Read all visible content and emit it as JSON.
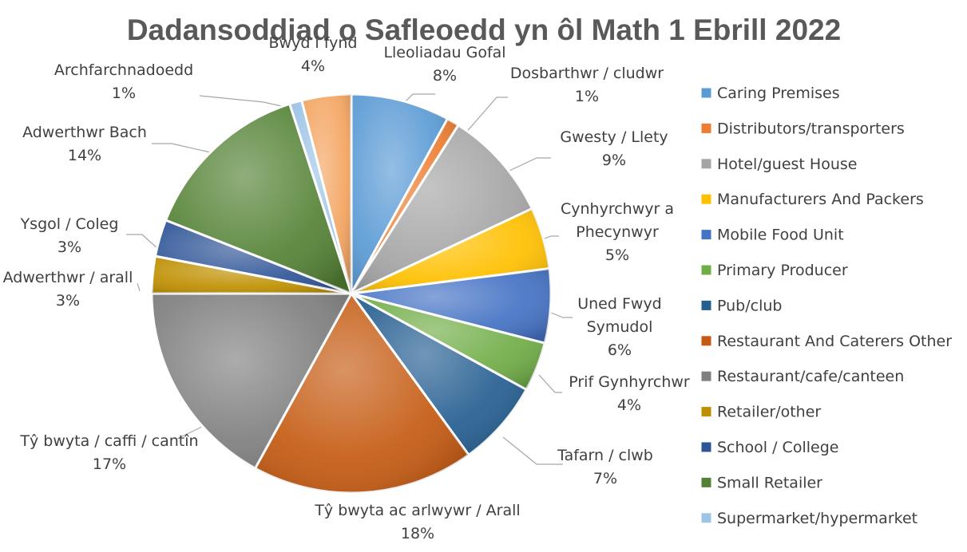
{
  "chart_data": {
    "type": "pie",
    "title": "Dadansoddiad o Safleoedd yn ôl Math 1 Ebrill 2022",
    "legend_position": "right",
    "slices": [
      {
        "label": "Lleoliadau Gofal",
        "label_lines": [
          "Lleoliadau Gofal"
        ],
        "percent": "8%",
        "value": 8,
        "legend": "Caring Premises",
        "color": "#5b9bd5"
      },
      {
        "label": "Dosbarthwr / cludwr",
        "label_lines": [
          "Dosbarthwr / cludwr"
        ],
        "percent": "1%",
        "value": 1,
        "legend": "Distributors/transporters",
        "color": "#ed7d31"
      },
      {
        "label": "Gwesty / Llety",
        "label_lines": [
          "Gwesty / Llety"
        ],
        "percent": "9%",
        "value": 9,
        "legend": "Hotel/guest House",
        "color": "#a5a5a5"
      },
      {
        "label": "Cynhyrchwyr a Phecynwyr",
        "label_lines": [
          "Cynhyrchwyr a",
          "Phecynwyr"
        ],
        "percent": "5%",
        "value": 5,
        "legend": "Manufacturers And Packers",
        "color": "#ffc000"
      },
      {
        "label": "Uned Fwyd Symudol",
        "label_lines": [
          "Uned Fwyd",
          "Symudol"
        ],
        "percent": "6%",
        "value": 6,
        "legend": "Mobile Food Unit",
        "color": "#4472c4"
      },
      {
        "label": "Prif Gynhyrchwr",
        "label_lines": [
          "Prif Gynhyrchwr"
        ],
        "percent": "4%",
        "value": 4,
        "legend": "Primary Producer",
        "color": "#70ad47"
      },
      {
        "label": "Tafarn / clwb",
        "label_lines": [
          "Tafarn / clwb"
        ],
        "percent": "7%",
        "value": 7,
        "legend": "Pub/club",
        "color": "#255e91"
      },
      {
        "label": "Tŷ bwyta ac arlwywr / Arall",
        "label_lines": [
          "Tŷ bwyta ac arlwywr / Arall"
        ],
        "percent": "18%",
        "value": 18,
        "legend": "Restaurant And Caterers Other",
        "color": "#c55a11"
      },
      {
        "label": "Tŷ bwyta / caffi / cantîn",
        "label_lines": [
          "Tŷ bwyta / caffi / cantîn"
        ],
        "percent": "17%",
        "value": 17,
        "legend": "Restaurant/cafe/canteen",
        "color": "#7f7f7f"
      },
      {
        "label": "Adwerthwr / arall",
        "label_lines": [
          "Adwerthwr / arall"
        ],
        "percent": "3%",
        "value": 3,
        "legend": "Retailer/other",
        "color": "#bf8f00"
      },
      {
        "label": "Ysgol / Coleg",
        "label_lines": [
          "Ysgol / Coleg"
        ],
        "percent": "3%",
        "value": 3,
        "legend": "School / College",
        "color": "#2f5597"
      },
      {
        "label": "Adwerthwr Bach",
        "label_lines": [
          "Adwerthwr Bach"
        ],
        "percent": "14%",
        "value": 14,
        "legend": "Small Retailer",
        "color": "#548235"
      },
      {
        "label": "Archfarchnadoedd",
        "label_lines": [
          "Archfarchnadoedd"
        ],
        "percent": "1%",
        "value": 1,
        "legend": "Supermarket/hypermarket",
        "color": "#9dc3e6"
      },
      {
        "label": "Bwyd i fynd",
        "label_lines": [
          "Bwyd i fynd"
        ],
        "percent": "4%",
        "value": 4,
        "legend": "",
        "color": "#f4a460"
      }
    ]
  }
}
